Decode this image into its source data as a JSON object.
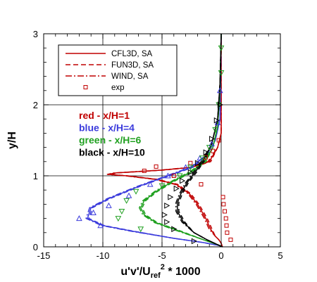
{
  "chart_data": {
    "type": "line",
    "xlabel_parts": {
      "base": "u'v'/U",
      "sub": "ref",
      "sup": "2",
      "tail": " * 1000"
    },
    "ylabel": "y/H",
    "xlim": [
      -15,
      5
    ],
    "ylim": [
      0,
      3
    ],
    "x_ticks": [
      -15,
      -10,
      -5,
      0,
      5
    ],
    "x_tick_labels": [
      "-15",
      "-10",
      "-5",
      "0",
      "5"
    ],
    "y_ticks": [
      0,
      1,
      2,
      3
    ],
    "y_tick_labels": [
      "0",
      "1",
      "2",
      "3"
    ],
    "grid": true,
    "colors": {
      "red": "#c00000",
      "blue": "#3c3cdc",
      "green": "#20a020",
      "black": "#000000"
    },
    "legend": {
      "placement": "top-left",
      "entries": [
        {
          "label": "CFL3D, SA",
          "style": "solid"
        },
        {
          "label": "FUN3D, SA",
          "style": "dashed"
        },
        {
          "label": "WIND, SA",
          "style": "dashdot"
        },
        {
          "label": "exp",
          "style": "marker"
        }
      ]
    },
    "annotations": [
      {
        "text": "red - x/H=1",
        "color": "red"
      },
      {
        "text": "blue - x/H=4",
        "color": "blue"
      },
      {
        "text": "green - x/H=6",
        "color": "green"
      },
      {
        "text": "black - x/H=10",
        "color": "black"
      }
    ],
    "series": [
      {
        "station": "x/H=1",
        "color": "red",
        "kind": "cfd",
        "points": [
          [
            0.1,
            0
          ],
          [
            0.0,
            0.05
          ],
          [
            -0.2,
            0.1
          ],
          [
            -0.5,
            0.15
          ],
          [
            -0.9,
            0.25
          ],
          [
            -1.3,
            0.4
          ],
          [
            -2.0,
            0.6
          ],
          [
            -2.7,
            0.75
          ],
          [
            -3.8,
            0.88
          ],
          [
            -5.5,
            0.95
          ],
          [
            -8.0,
            1.0
          ],
          [
            -9.5,
            1.02
          ],
          [
            -9.0,
            1.04
          ],
          [
            -5.0,
            1.08
          ],
          [
            -2.5,
            1.12
          ],
          [
            -1.0,
            1.2
          ],
          [
            -0.3,
            1.4
          ],
          [
            0.0,
            1.6
          ],
          [
            0.0,
            3.0
          ]
        ]
      },
      {
        "station": "x/H=1",
        "color": "red",
        "kind": "exp",
        "points": [
          [
            0.8,
            0.1
          ],
          [
            0.5,
            0.2
          ],
          [
            0.45,
            0.3
          ],
          [
            0.4,
            0.4
          ],
          [
            0.3,
            0.5
          ],
          [
            0.2,
            0.6
          ],
          [
            0.15,
            0.7
          ],
          [
            -1.7,
            0.88
          ],
          [
            -4.0,
            1.0
          ],
          [
            -6.5,
            1.07
          ],
          [
            -5.5,
            1.13
          ],
          [
            -2.6,
            1.18
          ],
          [
            -1.3,
            1.26
          ],
          [
            -0.7,
            1.35
          ],
          [
            -0.2,
            1.5
          ]
        ]
      },
      {
        "station": "x/H=4",
        "color": "blue",
        "kind": "cfd",
        "points": [
          [
            0.1,
            0
          ],
          [
            -0.2,
            0.02
          ],
          [
            -1.5,
            0.06
          ],
          [
            -4.0,
            0.12
          ],
          [
            -7.5,
            0.22
          ],
          [
            -10.0,
            0.3
          ],
          [
            -11.3,
            0.4
          ],
          [
            -11.0,
            0.55
          ],
          [
            -9.5,
            0.68
          ],
          [
            -7.0,
            0.85
          ],
          [
            -4.5,
            1.0
          ],
          [
            -2.5,
            1.12
          ],
          [
            -1.2,
            1.3
          ],
          [
            -0.5,
            1.5
          ],
          [
            -0.1,
            1.8
          ],
          [
            0.0,
            3.0
          ]
        ]
      },
      {
        "station": "x/H=4",
        "color": "blue",
        "kind": "exp",
        "points": [
          [
            -10.2,
            0.3
          ],
          [
            -12.0,
            0.4
          ],
          [
            -10.8,
            0.48
          ],
          [
            -9.5,
            0.58
          ],
          [
            -7.8,
            0.72
          ],
          [
            -6.0,
            0.88
          ],
          [
            -4.5,
            1.0
          ],
          [
            -3.0,
            1.12
          ],
          [
            -1.8,
            1.25
          ],
          [
            -0.8,
            1.45
          ],
          [
            -0.3,
            1.75
          ],
          [
            -0.1,
            2.2
          ]
        ]
      },
      {
        "station": "x/H=6",
        "color": "green",
        "kind": "cfd",
        "points": [
          [
            0.1,
            0
          ],
          [
            -0.3,
            0.03
          ],
          [
            -1.5,
            0.1
          ],
          [
            -3.5,
            0.22
          ],
          [
            -5.5,
            0.34
          ],
          [
            -6.5,
            0.45
          ],
          [
            -6.8,
            0.55
          ],
          [
            -6.5,
            0.65
          ],
          [
            -5.5,
            0.78
          ],
          [
            -4.0,
            0.93
          ],
          [
            -2.5,
            1.06
          ],
          [
            -1.4,
            1.2
          ],
          [
            -0.7,
            1.4
          ],
          [
            -0.3,
            1.7
          ],
          [
            -0.1,
            2.2
          ],
          [
            0.0,
            3.0
          ]
        ]
      },
      {
        "station": "x/H=6",
        "color": "green",
        "kind": "exp",
        "points": [
          [
            -6.8,
            0.25
          ],
          [
            -8.7,
            0.4
          ],
          [
            -8.4,
            0.5
          ],
          [
            -8.0,
            0.65
          ],
          [
            -7.2,
            0.78
          ],
          [
            -5.0,
            0.86
          ],
          [
            -3.5,
            1.0
          ],
          [
            -2.6,
            1.12
          ],
          [
            -1.6,
            1.25
          ],
          [
            -1.0,
            1.4
          ],
          [
            -0.5,
            1.65
          ],
          [
            -0.2,
            2.0
          ],
          [
            0.0,
            2.45
          ],
          [
            0.0,
            2.8
          ]
        ]
      },
      {
        "station": "x/H=10",
        "color": "black",
        "kind": "cfd",
        "points": [
          [
            0.1,
            0
          ],
          [
            -0.3,
            0.03
          ],
          [
            -1.2,
            0.1
          ],
          [
            -2.3,
            0.2
          ],
          [
            -3.2,
            0.35
          ],
          [
            -3.7,
            0.5
          ],
          [
            -3.7,
            0.62
          ],
          [
            -3.4,
            0.75
          ],
          [
            -2.9,
            0.9
          ],
          [
            -2.2,
            1.05
          ],
          [
            -1.5,
            1.22
          ],
          [
            -0.8,
            1.45
          ],
          [
            -0.3,
            1.8
          ],
          [
            -0.1,
            2.3
          ],
          [
            0.0,
            3.0
          ]
        ]
      },
      {
        "station": "x/H=10",
        "color": "black",
        "kind": "exp",
        "points": [
          [
            -2.3,
            0.08
          ],
          [
            -4.0,
            0.25
          ],
          [
            -4.6,
            0.35
          ],
          [
            -4.8,
            0.45
          ],
          [
            -4.6,
            0.58
          ],
          [
            -4.3,
            0.7
          ],
          [
            -3.8,
            0.82
          ],
          [
            -3.3,
            0.93
          ],
          [
            -2.6,
            1.05
          ],
          [
            -2.0,
            1.18
          ],
          [
            -1.3,
            1.33
          ],
          [
            -0.8,
            1.52
          ],
          [
            -0.4,
            1.78
          ],
          [
            -0.1,
            2.0
          ]
        ]
      }
    ]
  }
}
